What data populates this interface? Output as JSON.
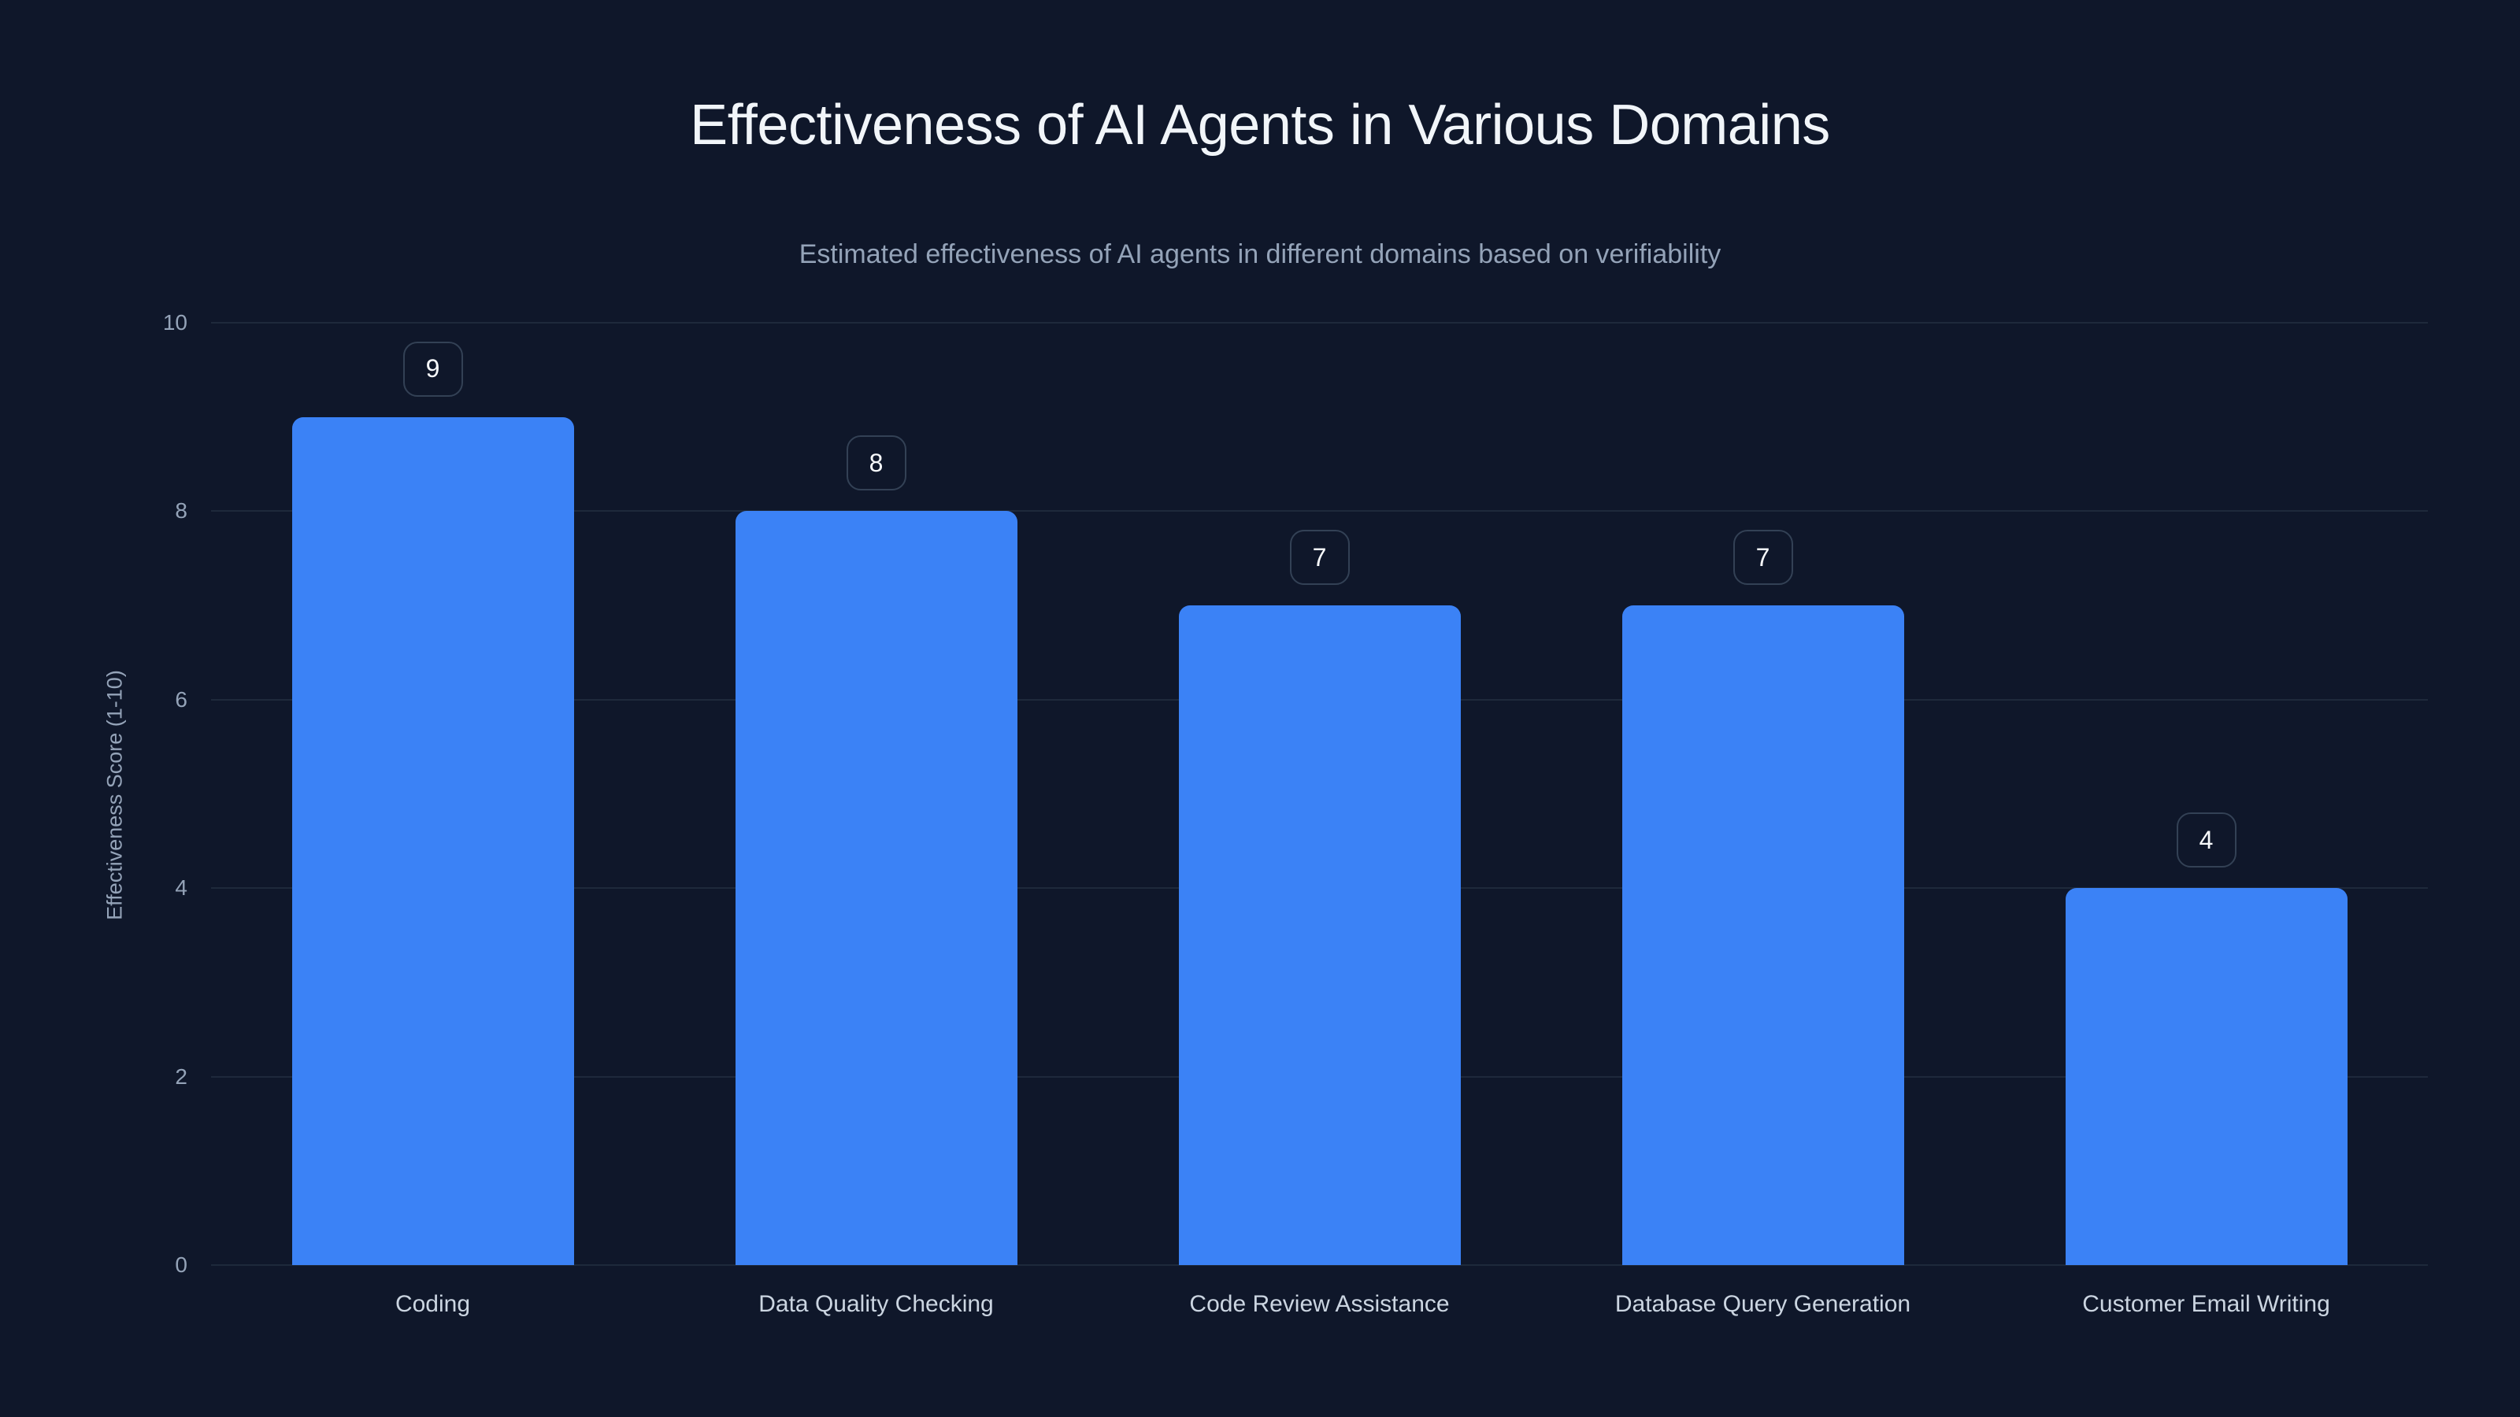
{
  "chart_data": {
    "type": "bar",
    "title": "Effectiveness of AI Agents in Various Domains",
    "subtitle": "Estimated effectiveness of AI agents in different domains based on verifiability",
    "xlabel": "",
    "ylabel": "Effectiveness Score (1-10)",
    "ylim": [
      0,
      10
    ],
    "yticks": [
      0,
      2,
      4,
      6,
      8,
      10
    ],
    "grid": true,
    "legend": null,
    "categories": [
      "Coding",
      "Data Quality Checking",
      "Code Review Assistance",
      "Database Query Generation",
      "Customer Email Writing"
    ],
    "values": [
      9,
      8,
      7,
      7,
      4
    ],
    "data_labels": [
      "9",
      "8",
      "7",
      "7",
      "4"
    ],
    "bar_color": "#3b82f6"
  },
  "colors": {
    "background": "#0f172a",
    "bar": "#3b82f6",
    "grid": "#1e293b",
    "title": "#f1f5f9",
    "muted": "#94a3b8"
  }
}
